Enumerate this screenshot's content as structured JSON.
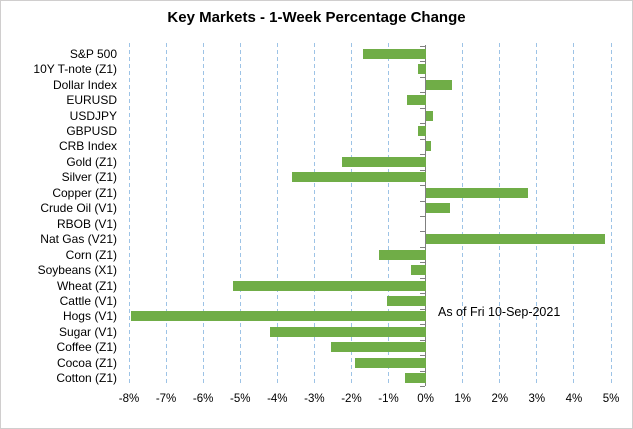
{
  "chart_data": {
    "type": "bar",
    "orientation": "horizontal",
    "title": "Key Markets - 1-Week Percentage Change",
    "annotation": "As of Fri 10-Sep-2021",
    "categories": [
      "S&P 500",
      "10Y T-note (Z1)",
      "Dollar Index",
      "EURUSD",
      "USDJPY",
      "GBPUSD",
      "CRB Index",
      "Gold (Z1)",
      "Silver (Z1)",
      "Copper (Z1)",
      "Crude Oil (V1)",
      "RBOB (V1)",
      "Nat Gas (V21)",
      "Corn (Z1)",
      "Soybeans (X1)",
      "Wheat (Z1)",
      "Cattle (V1)",
      "Hogs (V1)",
      "Sugar (V1)",
      "Coffee (Z1)",
      "Cocoa (Z1)",
      "Cotton (Z1)"
    ],
    "values": [
      -1.7,
      -0.2,
      0.7,
      -0.5,
      0.2,
      -0.2,
      0.15,
      -2.25,
      -3.6,
      2.75,
      0.65,
      0,
      4.85,
      -1.25,
      -0.4,
      -5.2,
      -1.05,
      -7.95,
      -4.2,
      -2.55,
      -1.9,
      -0.55
    ],
    "value_unit": "%",
    "xlabel": "",
    "ylabel": "",
    "xlim": [
      -8,
      5
    ],
    "x_tick_step": 1,
    "x_tick_labels": [
      "-8%",
      "-7%",
      "-6%",
      "-5%",
      "-4%",
      "-3%",
      "-2%",
      "-1%",
      "0%",
      "1%",
      "2%",
      "3%",
      "4%",
      "5%"
    ],
    "grid": "vertical-dashed",
    "legend": "none",
    "bar_color": "#70AD47",
    "gridline_color": "#9DC3E6",
    "axis_color": "#808080",
    "text_color": "#000000"
  }
}
